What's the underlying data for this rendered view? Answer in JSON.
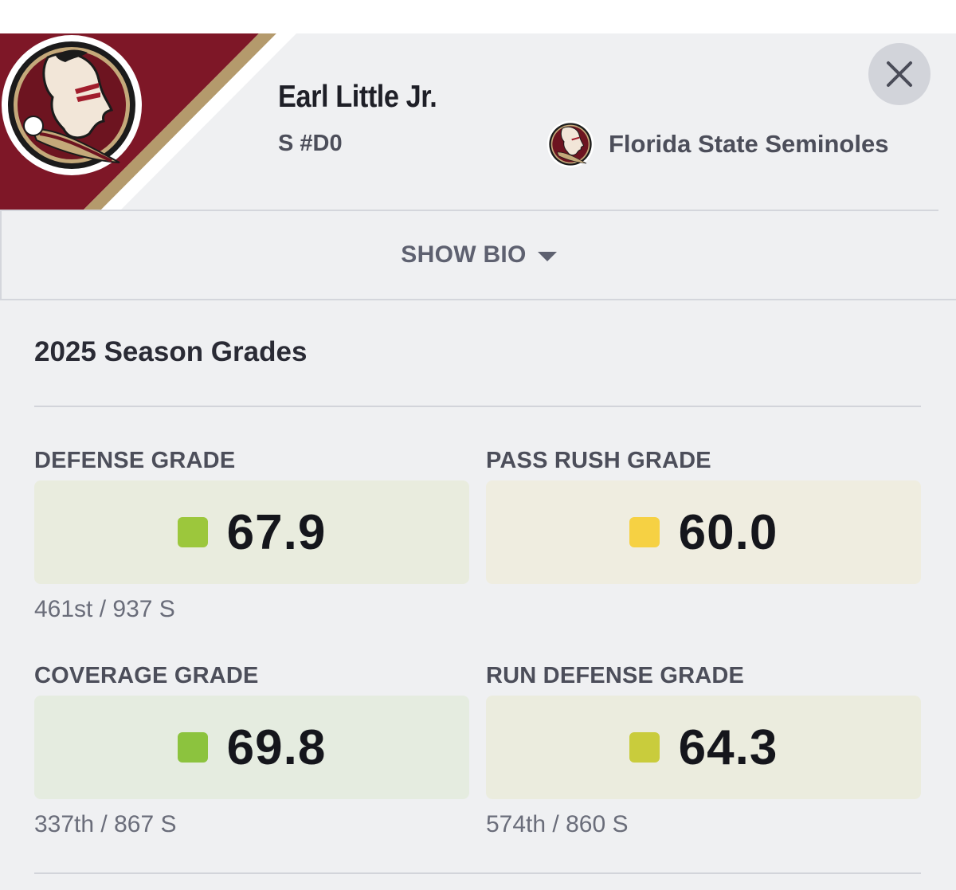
{
  "player": {
    "name": "Earl Little Jr.",
    "position": "S #D0"
  },
  "team": {
    "name": "Florida State Seminoles",
    "colors": {
      "primary": "#7e1727",
      "gold": "#b49a6c"
    }
  },
  "bio_toggle": {
    "label": "SHOW BIO"
  },
  "section": {
    "title": "2025 Season Grades"
  },
  "grades": [
    {
      "label": "DEFENSE GRADE",
      "value": "67.9",
      "rank": "461st / 937 S",
      "swatch": "#9cc73c",
      "box_bg": "#e9ecde"
    },
    {
      "label": "PASS RUSH GRADE",
      "value": "60.0",
      "rank": "",
      "swatch": "#f6d143",
      "box_bg": "#efede0"
    },
    {
      "label": "COVERAGE GRADE",
      "value": "69.8",
      "rank": "337th / 867 S",
      "swatch": "#8cc33e",
      "box_bg": "#e5ece0"
    },
    {
      "label": "RUN DEFENSE GRADE",
      "value": "64.3",
      "rank": "574th / 860 S",
      "swatch": "#c9cc3c",
      "box_bg": "#ebecde"
    }
  ],
  "icons": {
    "close": "close-icon",
    "caret": "chevron-down-icon",
    "logo": "seminoles-logo"
  }
}
